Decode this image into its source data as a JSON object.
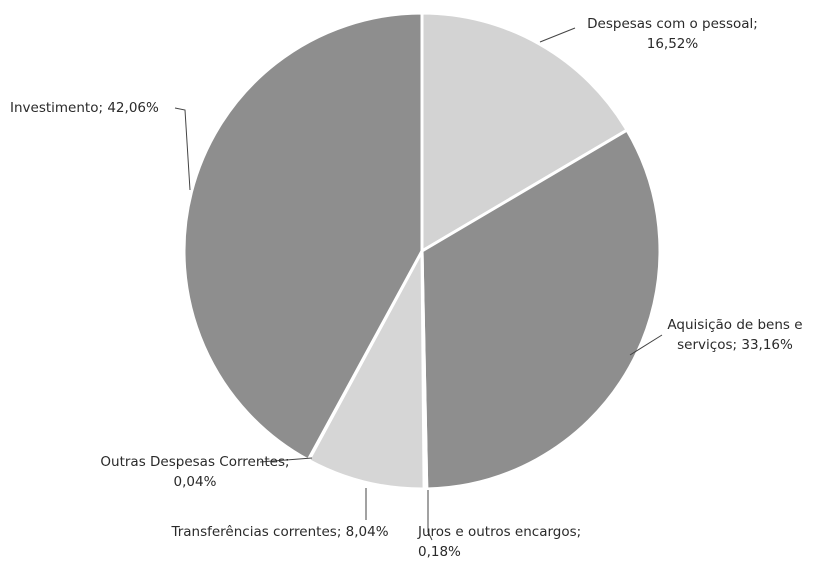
{
  "chart_data": {
    "type": "pie",
    "categories": [
      "Despesas com o pessoal",
      "Aquisição de bens e serviços",
      "Juros e outros encargos",
      "Transferências correntes",
      "Outras Despesas Correntes",
      "Investimento"
    ],
    "values": [
      16.52,
      33.16,
      0.18,
      8.04,
      0.04,
      42.06
    ],
    "value_labels": [
      "16,52%",
      "33,16%",
      "0,18%",
      "8,04%",
      "0,04%",
      "42,06%"
    ],
    "label_separator": ";",
    "colors": [
      "#d3d3d3",
      "#8e8e8e",
      "#8e8e8e",
      "#d6d6d6",
      "#d6d6d6",
      "#8e8e8e"
    ]
  }
}
